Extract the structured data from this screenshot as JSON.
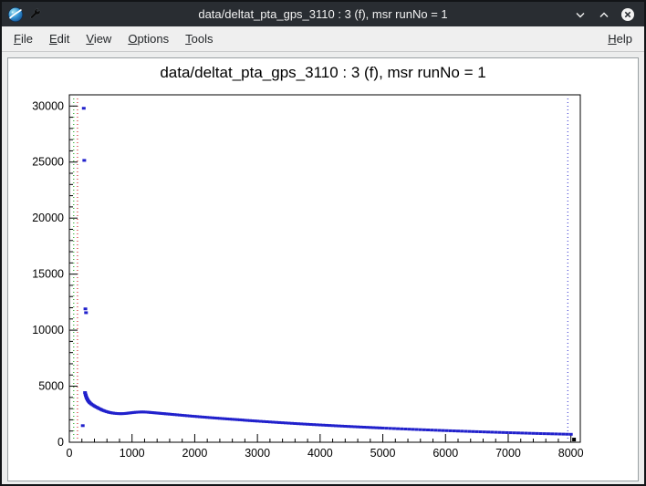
{
  "window": {
    "title": "data/deltat_pta_gps_3110 : 3 (f), msr runNo = 1"
  },
  "menu": {
    "items": [
      {
        "label": "File"
      },
      {
        "label": "Edit"
      },
      {
        "label": "View"
      },
      {
        "label": "Options"
      },
      {
        "label": "Tools"
      }
    ],
    "help": {
      "label": "Help"
    }
  },
  "chart_data": {
    "type": "scatter",
    "title": "data/deltat_pta_gps_3110 : 3 (f), msr runNo = 1",
    "xlabel": "",
    "ylabel": "",
    "xlim": [
      0,
      8150
    ],
    "ylim": [
      0,
      31000
    ],
    "x_ticks": [
      0,
      1000,
      2000,
      3000,
      4000,
      5000,
      6000,
      7000,
      8000
    ],
    "y_ticks": [
      0,
      5000,
      10000,
      15000,
      20000,
      25000,
      30000
    ],
    "x_major": 1000,
    "x_minor": 200,
    "y_major": 5000,
    "y_minor": 1000,
    "grid": false,
    "legend": "none",
    "marker_color": "#2121cc",
    "frame_color": "#000000",
    "vlines": [
      {
        "x": 70,
        "color": "#009900",
        "style": "dotted",
        "name": "t0-marker-green"
      },
      {
        "x": 130,
        "color": "#cc0000",
        "style": "dotted",
        "name": "start-marker-red"
      },
      {
        "x": 7950,
        "color": "#2121cc",
        "style": "dotted",
        "name": "end-marker-blue"
      }
    ],
    "black_points": [
      [
        8050,
        240
      ]
    ],
    "points": [
      [
        230,
        29800
      ],
      [
        238,
        25150
      ],
      [
        256,
        11900
      ],
      [
        266,
        11560
      ],
      [
        214,
        1480
      ],
      [
        250,
        4430
      ],
      [
        256,
        4300
      ],
      [
        262,
        4180
      ],
      [
        269,
        4060
      ],
      [
        276,
        3960
      ],
      [
        284,
        3870
      ],
      [
        292,
        3780
      ],
      [
        301,
        3700
      ],
      [
        311,
        3620
      ],
      [
        321,
        3555
      ],
      [
        332,
        3495
      ],
      [
        350,
        3415
      ],
      [
        370,
        3340
      ],
      [
        390,
        3265
      ],
      [
        410,
        3200
      ],
      [
        430,
        3135
      ],
      [
        450,
        3080
      ],
      [
        470,
        3020
      ],
      [
        490,
        2965
      ],
      [
        510,
        2910
      ],
      [
        530,
        2860
      ],
      [
        550,
        2815
      ],
      [
        575,
        2765
      ],
      [
        600,
        2720
      ],
      [
        625,
        2680
      ],
      [
        650,
        2648
      ],
      [
        675,
        2620
      ],
      [
        700,
        2598
      ],
      [
        730,
        2578
      ],
      [
        760,
        2562
      ],
      [
        790,
        2552
      ],
      [
        820,
        2548
      ],
      [
        850,
        2552
      ],
      [
        880,
        2562
      ],
      [
        910,
        2578
      ],
      [
        940,
        2598
      ],
      [
        970,
        2618
      ],
      [
        1000,
        2638
      ],
      [
        1030,
        2658
      ],
      [
        1060,
        2672
      ],
      [
        1090,
        2684
      ],
      [
        1120,
        2694
      ],
      [
        1150,
        2700
      ],
      [
        1180,
        2700
      ],
      [
        1210,
        2694
      ],
      [
        1240,
        2684
      ],
      [
        1270,
        2670
      ],
      [
        1300,
        2656
      ],
      [
        1330,
        2640
      ],
      [
        1360,
        2625
      ],
      [
        1390,
        2610
      ],
      [
        1420,
        2594
      ],
      [
        1450,
        2580
      ],
      [
        1480,
        2564
      ],
      [
        1510,
        2550
      ],
      [
        1540,
        2535
      ],
      [
        1570,
        2520
      ],
      [
        1600,
        2505
      ],
      [
        1640,
        2485
      ],
      [
        1680,
        2465
      ],
      [
        1720,
        2445
      ],
      [
        1760,
        2425
      ],
      [
        1800,
        2405
      ],
      [
        1840,
        2385
      ],
      [
        1880,
        2365
      ],
      [
        1920,
        2345
      ],
      [
        1960,
        2325
      ],
      [
        2000,
        2308
      ],
      [
        2040,
        2290
      ],
      [
        2080,
        2270
      ],
      [
        2120,
        2252
      ],
      [
        2160,
        2234
      ],
      [
        2200,
        2216
      ],
      [
        2240,
        2198
      ],
      [
        2280,
        2181
      ],
      [
        2320,
        2164
      ],
      [
        2360,
        2147
      ],
      [
        2400,
        2130
      ],
      [
        2440,
        2113
      ],
      [
        2480,
        2097
      ],
      [
        2520,
        2080
      ],
      [
        2560,
        2064
      ],
      [
        2600,
        2048
      ],
      [
        2640,
        2032
      ],
      [
        2680,
        2016
      ],
      [
        2720,
        2000
      ],
      [
        2760,
        1984
      ],
      [
        2800,
        1962
      ],
      [
        2840,
        1947
      ],
      [
        2880,
        1931
      ],
      [
        2920,
        1916
      ],
      [
        2960,
        1900
      ],
      [
        3000,
        1885
      ],
      [
        3050,
        1866
      ],
      [
        3100,
        1847
      ],
      [
        3150,
        1829
      ],
      [
        3200,
        1810
      ],
      [
        3250,
        1792
      ],
      [
        3300,
        1774
      ],
      [
        3350,
        1756
      ],
      [
        3400,
        1739
      ],
      [
        3450,
        1721
      ],
      [
        3500,
        1704
      ],
      [
        3550,
        1687
      ],
      [
        3600,
        1670
      ],
      [
        3650,
        1653
      ],
      [
        3700,
        1637
      ],
      [
        3750,
        1620
      ],
      [
        3800,
        1604
      ],
      [
        3850,
        1588
      ],
      [
        3900,
        1573
      ],
      [
        3950,
        1557
      ],
      [
        4000,
        1542
      ],
      [
        4050,
        1527
      ],
      [
        4100,
        1512
      ],
      [
        4150,
        1497
      ],
      [
        4200,
        1482
      ],
      [
        4250,
        1467
      ],
      [
        4300,
        1453
      ],
      [
        4350,
        1439
      ],
      [
        4400,
        1425
      ],
      [
        4450,
        1411
      ],
      [
        4500,
        1397
      ],
      [
        4550,
        1383
      ],
      [
        4600,
        1370
      ],
      [
        4650,
        1356
      ],
      [
        4700,
        1343
      ],
      [
        4750,
        1330
      ],
      [
        4800,
        1317
      ],
      [
        4850,
        1304
      ],
      [
        4900,
        1291
      ],
      [
        4950,
        1279
      ],
      [
        5000,
        1266
      ],
      [
        5060,
        1251
      ],
      [
        5120,
        1236
      ],
      [
        5180,
        1222
      ],
      [
        5240,
        1207
      ],
      [
        5300,
        1193
      ],
      [
        5360,
        1179
      ],
      [
        5420,
        1165
      ],
      [
        5480,
        1151
      ],
      [
        5540,
        1138
      ],
      [
        5600,
        1124
      ],
      [
        5660,
        1111
      ],
      [
        5720,
        1098
      ],
      [
        5780,
        1085
      ],
      [
        5840,
        1072
      ],
      [
        5900,
        1060
      ],
      [
        5960,
        1047
      ],
      [
        6020,
        1035
      ],
      [
        6080,
        1023
      ],
      [
        6140,
        1011
      ],
      [
        6200,
        999
      ],
      [
        6260,
        988
      ],
      [
        6320,
        976
      ],
      [
        6380,
        965
      ],
      [
        6440,
        954
      ],
      [
        6500,
        943
      ],
      [
        6560,
        932
      ],
      [
        6620,
        921
      ],
      [
        6680,
        910
      ],
      [
        6740,
        900
      ],
      [
        6800,
        889
      ],
      [
        6860,
        879
      ],
      [
        6920,
        869
      ],
      [
        6980,
        859
      ],
      [
        7040,
        849
      ],
      [
        7100,
        839
      ],
      [
        7160,
        830
      ],
      [
        7220,
        820
      ],
      [
        7280,
        811
      ],
      [
        7340,
        801
      ],
      [
        7400,
        792
      ],
      [
        7460,
        783
      ],
      [
        7520,
        774
      ],
      [
        7580,
        765
      ],
      [
        7640,
        757
      ],
      [
        7700,
        748
      ],
      [
        7760,
        740
      ],
      [
        7820,
        731
      ],
      [
        7880,
        723
      ],
      [
        7940,
        715
      ],
      [
        8000,
        707
      ]
    ]
  }
}
